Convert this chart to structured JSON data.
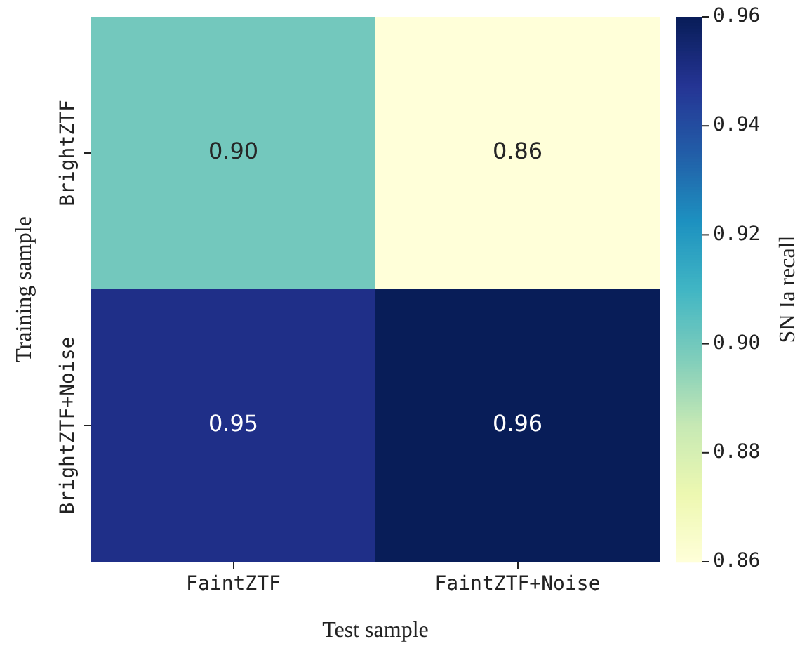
{
  "chart_data": {
    "type": "heatmap",
    "xlabel": "Test sample",
    "ylabel": "Training sample",
    "clabel": "SN Ia recall",
    "categories": [
      "FaintZTF",
      "FaintZTF+Noise"
    ],
    "y_categories": [
      "BrightZTF",
      "BrightZTF+Noise"
    ],
    "cells": [
      [
        0.9,
        0.86
      ],
      [
        0.95,
        0.96
      ]
    ],
    "cell_labels": [
      [
        "0.90",
        "0.86"
      ],
      [
        "0.95",
        "0.96"
      ]
    ],
    "clim": [
      0.86,
      0.96
    ],
    "cticks": [
      {
        "value": 0.86,
        "label": "0.86"
      },
      {
        "value": 0.88,
        "label": "0.88"
      },
      {
        "value": 0.9,
        "label": "0.90"
      },
      {
        "value": 0.92,
        "label": "0.92"
      },
      {
        "value": 0.94,
        "label": "0.94"
      },
      {
        "value": 0.96,
        "label": "0.96"
      }
    ]
  }
}
